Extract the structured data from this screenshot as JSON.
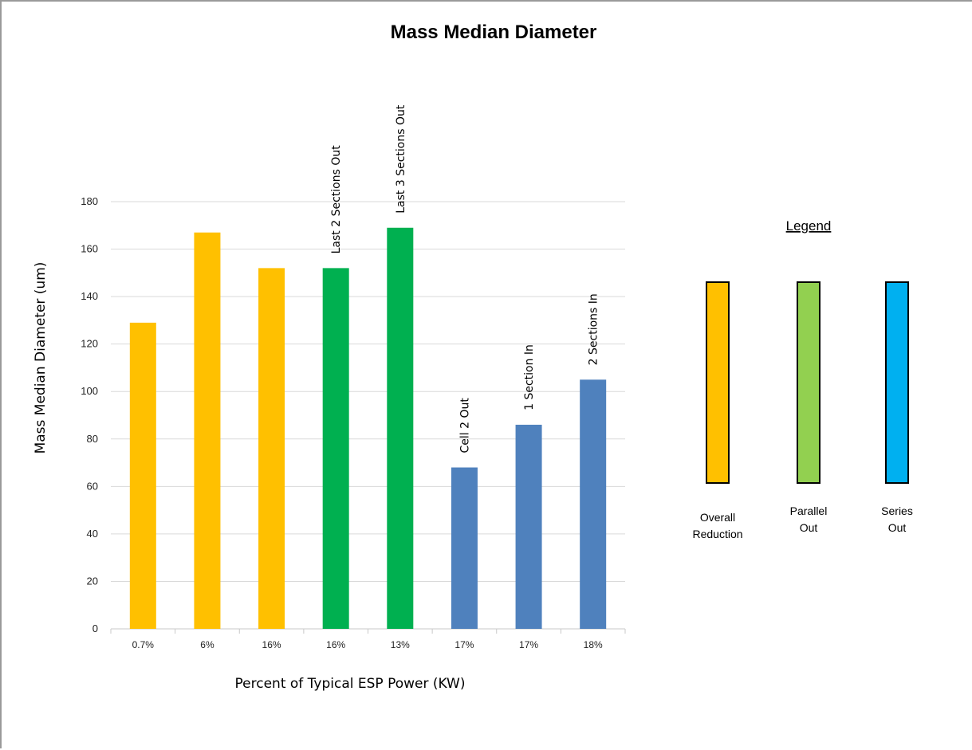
{
  "chart_data": {
    "type": "bar",
    "title": "Mass Median Diameter",
    "xlabel": "Percent of Typical ESP Power (KW)",
    "ylabel": "Mass Median Diameter (um)",
    "ylim": [
      0,
      180
    ],
    "yticks": [
      0,
      20,
      40,
      60,
      80,
      100,
      120,
      140,
      160,
      180
    ],
    "grid": true,
    "categories": [
      "0.7%",
      "6%",
      "16%",
      "16%",
      "13%",
      "17%",
      "17%",
      "18%"
    ],
    "values": [
      129,
      167,
      152,
      152,
      169,
      68,
      86,
      105
    ],
    "bar_groups": [
      "Overall Reduction",
      "Overall Reduction",
      "Overall Reduction",
      "Parallel Out",
      "Parallel Out",
      "Series Out",
      "Series Out",
      "Series Out"
    ],
    "bar_colors": [
      "#FFC000",
      "#FFC000",
      "#FFC000",
      "#00B050",
      "#00B050",
      "#4F81BD",
      "#4F81BD",
      "#4F81BD"
    ],
    "annotations": [
      {
        "bar": 3,
        "text": "Last 2  Sections Out"
      },
      {
        "bar": 4,
        "text": "Last 3  Sections Out"
      },
      {
        "bar": 5,
        "text": "Cell  2 Out"
      },
      {
        "bar": 6,
        "text": "1 Section In"
      },
      {
        "bar": 7,
        "text": "2  Sections In"
      }
    ],
    "legend": {
      "title": "Legend",
      "placement": "right",
      "items": [
        {
          "label_lines": [
            "Overall",
            "Reduction"
          ],
          "color": "#FFC000"
        },
        {
          "label_lines": [
            "Parallel",
            "Out"
          ],
          "color": "#92D050"
        },
        {
          "label_lines": [
            "Series",
            "Out"
          ],
          "color": "#00B0F0"
        }
      ]
    }
  }
}
